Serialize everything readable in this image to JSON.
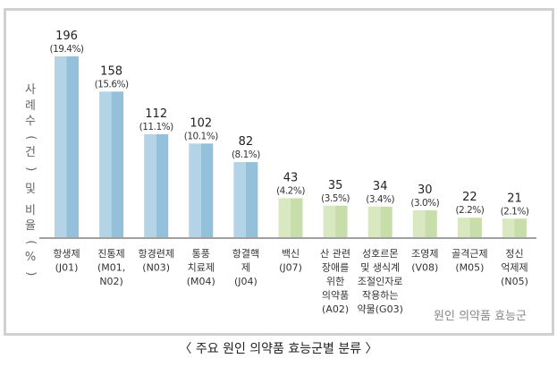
{
  "chart_data": {
    "type": "bar",
    "title": "주요 원인 의약품 효능군별 분류",
    "caption": "〈 주요 원인 의약품 효능군별 분류 〉",
    "ylabel": "사례수(건) 및 비율(%)",
    "xlabel": "원인 의약품 효능군",
    "ylim": [
      0,
      200
    ],
    "grid": false,
    "categories": [
      [
        "항생제",
        "(J01)"
      ],
      [
        "진통제",
        "(M01,",
        "N02)"
      ],
      [
        "항경련제",
        "(N03)"
      ],
      [
        "통풍",
        "치료제",
        "(M04)"
      ],
      [
        "항결핵",
        "제",
        "(J04)"
      ],
      [
        "백신",
        "(J07)"
      ],
      [
        "산 관련",
        "장애를",
        "위한",
        "의약품",
        "(A02)"
      ],
      [
        "성호르몬",
        "및 생식계",
        "조절인자로",
        "작용하는",
        "약물(G03)"
      ],
      [
        "조영제",
        "(V08)"
      ],
      [
        "골격근제",
        "(M05)"
      ],
      [
        "정신",
        "억제제",
        "(N05)"
      ]
    ],
    "values": [
      196,
      158,
      112,
      102,
      82,
      43,
      35,
      34,
      30,
      22,
      21
    ],
    "percent_labels": [
      "(19.4%)",
      "(15.6%)",
      "(11.1%)",
      "(10.1%)",
      "(8.1%)",
      "(4.2%)",
      "(3.5%)",
      "(3.4%)",
      "(3.0%)",
      "(2.2%)",
      "(2.1%)"
    ],
    "bar_groups": [
      "blue",
      "blue",
      "blue",
      "blue",
      "blue",
      "green",
      "green",
      "green",
      "green",
      "green",
      "green"
    ],
    "colors": {
      "blue_light": "#b3d3e6",
      "blue_dark": "#93c1dc",
      "green_light": "#d9e8c0",
      "green_dark": "#c8deaa",
      "axis": "#a0a0a0"
    }
  }
}
